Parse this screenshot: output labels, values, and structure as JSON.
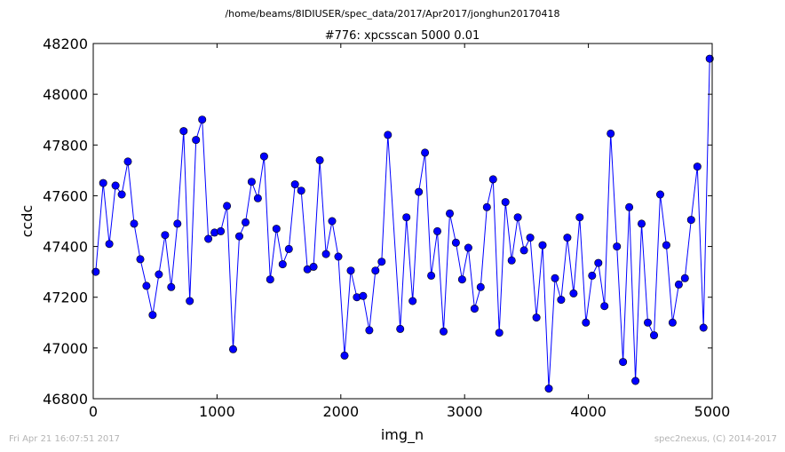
{
  "figure": {
    "suptitle": "/home/beams/8IDIUSER/spec_data/2017/Apr2017/jonghun20170418",
    "footer_left": "Fri Apr 21 16:07:51 2017",
    "footer_right": "spec2nexus, (C) 2014-2017"
  },
  "chart_data": {
    "type": "line",
    "title": "#776: xpcsscan 5000 0.01",
    "xlabel": "img_n",
    "ylabel": "ccdc",
    "xlim": [
      0,
      5000
    ],
    "ylim": [
      46800,
      48200
    ],
    "xticks": [
      0,
      1000,
      2000,
      3000,
      4000,
      5000
    ],
    "yticks": [
      46800,
      47000,
      47200,
      47400,
      47600,
      47800,
      48000,
      48200
    ],
    "marker": "circle",
    "grid": false,
    "color": "#0000ff",
    "series": [
      {
        "x": [
          20,
          80,
          130,
          180,
          230,
          280,
          330,
          380,
          430,
          480,
          530,
          580,
          630,
          680,
          730,
          780,
          830,
          880,
          930,
          980,
          1030,
          1080,
          1130,
          1180,
          1230,
          1280,
          1330,
          1380,
          1430,
          1480,
          1530,
          1580,
          1630,
          1680,
          1730,
          1780,
          1830,
          1880,
          1930,
          1980,
          2030,
          2080,
          2130,
          2180,
          2230,
          2280,
          2330,
          2380,
          2480,
          2530,
          2580,
          2630,
          2680,
          2730,
          2780,
          2830,
          2880,
          2930,
          2980,
          3030,
          3080,
          3130,
          3180,
          3230,
          3280,
          3330,
          3380,
          3430,
          3480,
          3530,
          3580,
          3630,
          3680,
          3730,
          3780,
          3830,
          3880,
          3930,
          3980,
          4030,
          4080,
          4130,
          4180,
          4230,
          4280,
          4330,
          4380,
          4430,
          4480,
          4530,
          4580,
          4630,
          4680,
          4730,
          4780,
          4830,
          4880,
          4930,
          4980
        ],
        "y": [
          47300,
          47650,
          47410,
          47640,
          47605,
          47735,
          47490,
          47350,
          47245,
          47130,
          47290,
          47445,
          47240,
          47490,
          47855,
          47185,
          47820,
          47900,
          47430,
          47455,
          47460,
          47560,
          46995,
          47440,
          47495,
          47655,
          47590,
          47755,
          47270,
          47470,
          47330,
          47390,
          47645,
          47620,
          47310,
          47320,
          47740,
          47370,
          47500,
          47360,
          46970,
          47305,
          47200,
          47205,
          47070,
          47305,
          47340,
          47840,
          47075,
          47515,
          47185,
          47615,
          47770,
          47285,
          47460,
          47065,
          47530,
          47415,
          47270,
          47395,
          47155,
          47240,
          47555,
          47665,
          47060,
          47575,
          47345,
          47515,
          47385,
          47435,
          47120,
          47405,
          46840,
          47275,
          47190,
          47435,
          47215,
          47515,
          47100,
          47285,
          47335,
          47165,
          47845,
          47400,
          46945,
          47555,
          46870,
          47490,
          47100,
          47050,
          47605,
          47405,
          47100,
          47250,
          47275,
          47505,
          47715,
          47080,
          48140
        ]
      }
    ]
  }
}
